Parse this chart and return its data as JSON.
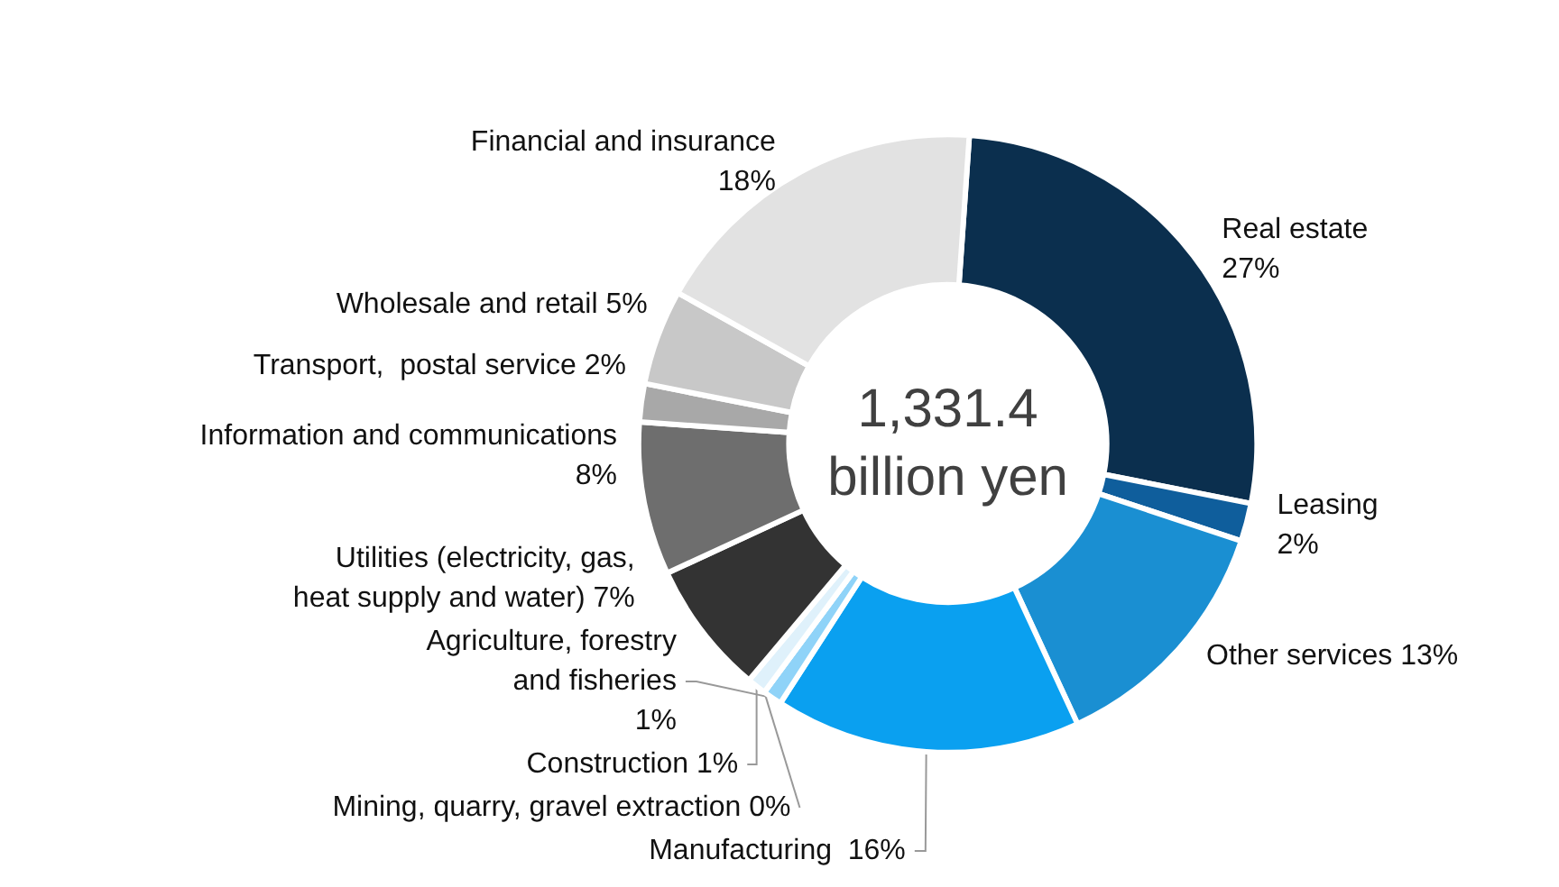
{
  "chart_data": {
    "type": "donut",
    "categories": [
      "Real estate",
      "Leasing",
      "Other services",
      "Manufacturing",
      "Agriculture, forestry and fisheries",
      "Mining, quarry, gravel extraction",
      "Construction",
      "Utilities (electricity, gas, heat supply and water)",
      "Information and communications",
      "Transport,  postal service",
      "Wholesale and retail",
      "Financial and insurance"
    ],
    "values": [
      27,
      2,
      13,
      16,
      1,
      0,
      1,
      7,
      8,
      2,
      5,
      18
    ],
    "colors": [
      "#0b2f4e",
      "#0f5e9c",
      "#1a8fd2",
      "#0aa0f0",
      "#8fd3f8",
      "#c4e8fa",
      "#dff1fb",
      "#333333",
      "#6e6e6e",
      "#a8a8a8",
      "#c8c8c8",
      "#e2e2e2"
    ],
    "value_labels": [
      "27%",
      "2%",
      "13%",
      "16%",
      "1%",
      "0%",
      "1%",
      "7%",
      "8%",
      "2%",
      "5%",
      "18%"
    ],
    "annotations": [
      "1,331.4\nbillion yen"
    ],
    "legend": false
  }
}
